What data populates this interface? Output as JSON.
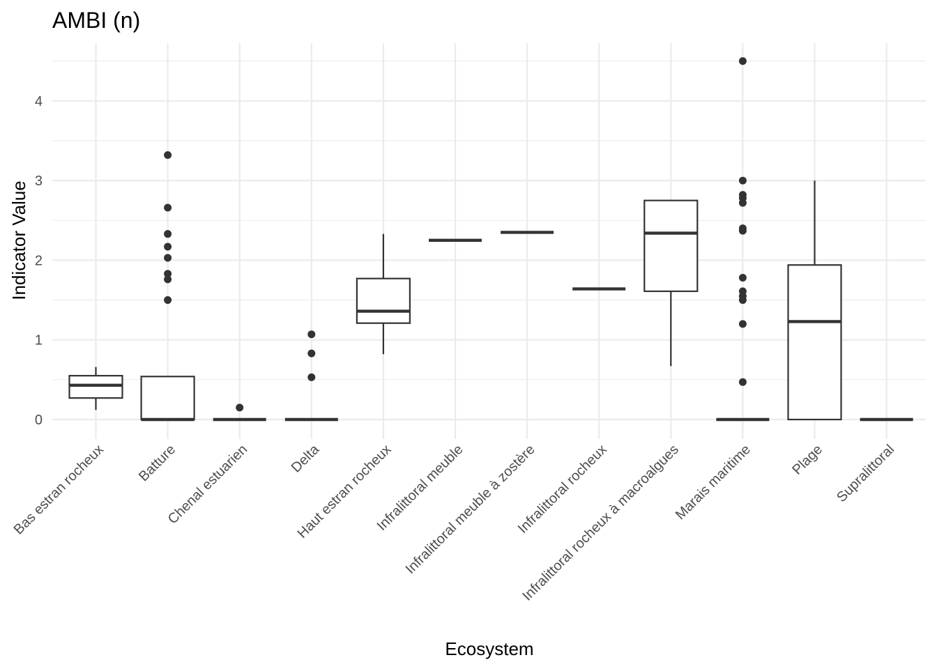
{
  "chart_data": {
    "type": "boxplot",
    "title": "AMBI (n)",
    "xlabel": "Ecosystem",
    "ylabel": "Indicator Value",
    "ylim": [
      -0.2,
      4.7
    ],
    "yticks": [
      0,
      1,
      2,
      3,
      4
    ],
    "grid": true,
    "categories": [
      "Bas estran rocheux",
      "Batture",
      "Chenal estuarien",
      "Delta",
      "Haut estran rocheux",
      "Infralittoral meuble",
      "Infralittoral meuble à zostère",
      "Infralittoral rocheux",
      "Infralittoral rocheux à macroalgues",
      "Marais maritime",
      "Plage",
      "Supralittoral"
    ],
    "boxes": [
      {
        "min": 0.12,
        "q1": 0.27,
        "median": 0.43,
        "q3": 0.55,
        "max": 0.66,
        "outliers": []
      },
      {
        "min": 0,
        "q1": 0,
        "median": 0,
        "q3": 0.54,
        "max": 0.54,
        "outliers": [
          1.5,
          1.76,
          1.83,
          2.03,
          2.17,
          2.33,
          2.66,
          3.32
        ]
      },
      {
        "min": 0,
        "q1": 0,
        "median": 0,
        "q3": 0,
        "max": 0,
        "outliers": [
          0.15
        ]
      },
      {
        "min": 0,
        "q1": 0,
        "median": 0,
        "q3": 0,
        "max": 0,
        "outliers": [
          0.53,
          0.83,
          1.07
        ]
      },
      {
        "min": 0.82,
        "q1": 1.21,
        "median": 1.36,
        "q3": 1.77,
        "max": 2.33,
        "outliers": []
      },
      {
        "min": 2.25,
        "q1": 2.25,
        "median": 2.25,
        "q3": 2.25,
        "max": 2.25,
        "outliers": []
      },
      {
        "min": 2.35,
        "q1": 2.35,
        "median": 2.35,
        "q3": 2.35,
        "max": 2.35,
        "outliers": []
      },
      {
        "min": 1.64,
        "q1": 1.64,
        "median": 1.64,
        "q3": 1.64,
        "max": 1.64,
        "outliers": []
      },
      {
        "min": 0.67,
        "q1": 1.61,
        "median": 2.34,
        "q3": 2.75,
        "max": 2.75,
        "outliers": []
      },
      {
        "min": 0,
        "q1": 0,
        "median": 0,
        "q3": 0,
        "max": 0,
        "outliers": [
          0.47,
          1.2,
          1.5,
          1.55,
          1.61,
          1.78,
          2.37,
          2.4,
          2.72,
          2.78,
          2.82,
          3.0,
          4.5
        ]
      },
      {
        "min": 0,
        "q1": 0,
        "median": 1.23,
        "q3": 1.94,
        "max": 3.0,
        "outliers": []
      },
      {
        "min": 0,
        "q1": 0,
        "median": 0,
        "q3": 0,
        "max": 0,
        "outliers": []
      }
    ]
  }
}
